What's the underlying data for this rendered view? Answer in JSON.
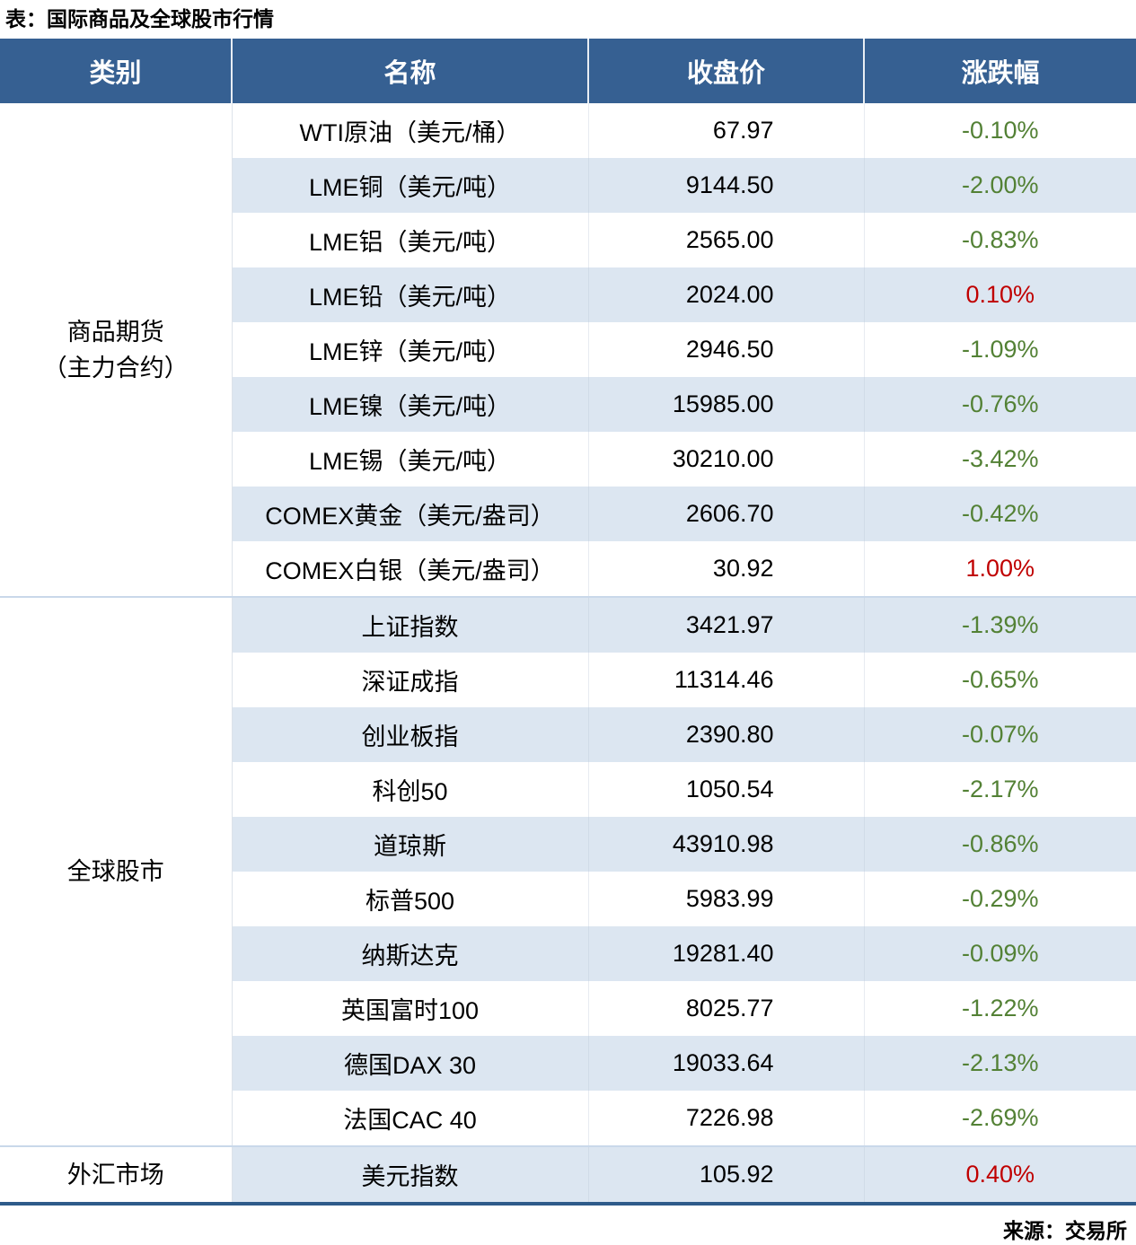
{
  "title": "表：国际商品及全球股市行情",
  "source": "来源：交易所",
  "columns": [
    "类别",
    "名称",
    "收盘价",
    "涨跌幅"
  ],
  "colors": {
    "header_bg": "#366092",
    "header_text": "#ffffff",
    "row_stripe": "#dce6f1",
    "down_green": "#538135",
    "up_red": "#c00000",
    "table_bottom_border": "#2e5b8a"
  },
  "sections": [
    {
      "category": "商品期货（主力合约）",
      "category_lines": [
        "商品期货",
        "（主力合约）"
      ],
      "rows": [
        {
          "name": "WTI原油（美元/桶）",
          "close": "67.97",
          "change": "-0.10%",
          "direction": "down"
        },
        {
          "name": "LME铜（美元/吨）",
          "close": "9144.50",
          "change": "-2.00%",
          "direction": "down"
        },
        {
          "name": "LME铝（美元/吨）",
          "close": "2565.00",
          "change": "-0.83%",
          "direction": "down"
        },
        {
          "name": "LME铅（美元/吨）",
          "close": "2024.00",
          "change": "0.10%",
          "direction": "up"
        },
        {
          "name": "LME锌（美元/吨）",
          "close": "2946.50",
          "change": "-1.09%",
          "direction": "down"
        },
        {
          "name": "LME镍（美元/吨）",
          "close": "15985.00",
          "change": "-0.76%",
          "direction": "down"
        },
        {
          "name": "LME锡（美元/吨）",
          "close": "30210.00",
          "change": "-3.42%",
          "direction": "down"
        },
        {
          "name": "COMEX黄金（美元/盎司）",
          "close": "2606.70",
          "change": "-0.42%",
          "direction": "down"
        },
        {
          "name": "COMEX白银（美元/盎司）",
          "close": "30.92",
          "change": "1.00%",
          "direction": "up"
        }
      ]
    },
    {
      "category": "全球股市",
      "category_lines": [
        "全球股市"
      ],
      "rows": [
        {
          "name": "上证指数",
          "close": "3421.97",
          "change": "-1.39%",
          "direction": "down"
        },
        {
          "name": "深证成指",
          "close": "11314.46",
          "change": "-0.65%",
          "direction": "down"
        },
        {
          "name": "创业板指",
          "close": "2390.80",
          "change": "-0.07%",
          "direction": "down"
        },
        {
          "name": "科创50",
          "close": "1050.54",
          "change": "-2.17%",
          "direction": "down"
        },
        {
          "name": "道琼斯",
          "close": "43910.98",
          "change": "-0.86%",
          "direction": "down"
        },
        {
          "name": "标普500",
          "close": "5983.99",
          "change": "-0.29%",
          "direction": "down"
        },
        {
          "name": "纳斯达克",
          "close": "19281.40",
          "change": "-0.09%",
          "direction": "down"
        },
        {
          "name": "英国富时100",
          "close": "8025.77",
          "change": "-1.22%",
          "direction": "down"
        },
        {
          "name": "德国DAX 30",
          "close": "19033.64",
          "change": "-2.13%",
          "direction": "down"
        },
        {
          "name": "法国CAC 40",
          "close": "7226.98",
          "change": "-2.69%",
          "direction": "down"
        }
      ]
    },
    {
      "category": "外汇市场",
      "category_lines": [
        "外汇市场"
      ],
      "rows": [
        {
          "name": "美元指数",
          "close": "105.92",
          "change": "0.40%",
          "direction": "up"
        }
      ]
    }
  ],
  "chart_data": {
    "type": "table",
    "title": "表：国际商品及全球股市行情",
    "headers": [
      "类别",
      "名称",
      "收盘价",
      "涨跌幅"
    ],
    "rows": [
      [
        "商品期货（主力合约）",
        "WTI原油（美元/桶）",
        67.97,
        "-0.10%"
      ],
      [
        "商品期货（主力合约）",
        "LME铜（美元/吨）",
        9144.5,
        "-2.00%"
      ],
      [
        "商品期货（主力合约）",
        "LME铝（美元/吨）",
        2565.0,
        "-0.83%"
      ],
      [
        "商品期货（主力合约）",
        "LME铅（美元/吨）",
        2024.0,
        "0.10%"
      ],
      [
        "商品期货（主力合约）",
        "LME锌（美元/吨）",
        2946.5,
        "-1.09%"
      ],
      [
        "商品期货（主力合约）",
        "LME镍（美元/吨）",
        15985.0,
        "-0.76%"
      ],
      [
        "商品期货（主力合约）",
        "LME锡（美元/吨）",
        30210.0,
        "-3.42%"
      ],
      [
        "商品期货（主力合约）",
        "COMEX黄金（美元/盎司）",
        2606.7,
        "-0.42%"
      ],
      [
        "商品期货（主力合约）",
        "COMEX白银（美元/盎司）",
        30.92,
        "1.00%"
      ],
      [
        "全球股市",
        "上证指数",
        3421.97,
        "-1.39%"
      ],
      [
        "全球股市",
        "深证成指",
        11314.46,
        "-0.65%"
      ],
      [
        "全球股市",
        "创业板指",
        2390.8,
        "-0.07%"
      ],
      [
        "全球股市",
        "科创50",
        1050.54,
        "-2.17%"
      ],
      [
        "全球股市",
        "道琼斯",
        43910.98,
        "-0.86%"
      ],
      [
        "全球股市",
        "标普500",
        5983.99,
        "-0.29%"
      ],
      [
        "全球股市",
        "纳斯达克",
        19281.4,
        "-0.09%"
      ],
      [
        "全球股市",
        "英国富时100",
        8025.77,
        "-1.22%"
      ],
      [
        "全球股市",
        "德国DAX 30",
        19033.64,
        "-2.13%"
      ],
      [
        "全球股市",
        "法国CAC 40",
        7226.98,
        "-2.69%"
      ],
      [
        "外汇市场",
        "美元指数",
        105.92,
        "0.40%"
      ]
    ],
    "notes": "涨跌幅颜色：负值为绿色(#538135)，正值为红色(#c00000)；来源：交易所"
  }
}
